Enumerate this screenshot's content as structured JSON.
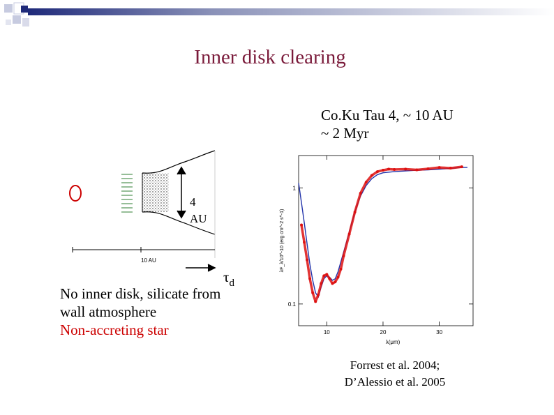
{
  "slide": {
    "title": "Inner disk clearing",
    "object_label_line1": "Co.Ku Tau 4, ~ 10 AU",
    "object_label_line2": "~ 2 Myr",
    "wall_height_line1": "4",
    "wall_height_line2": "AU",
    "scale_label": "10 AU",
    "tau_symbol": "τ",
    "tau_subscript": "d",
    "description_line1": "No inner disk, silicate from",
    "description_line2": "wall atmosphere",
    "description_line3": "Non-accreting star",
    "citation_line1": "Forrest et al. 2004;",
    "citation_line2": "D’Alessio et al. 2005"
  },
  "colors": {
    "title": "#7a1a3a",
    "accent_red": "#cc0000",
    "model_blue": "#2233aa",
    "corner_navy": "#1f2a7a"
  },
  "chart_data": {
    "type": "line",
    "xlabel": "λ(μm)",
    "ylabel": "λF_λ/10^-10 (erg cm^-2 s^-1)",
    "xticks": [
      "10",
      "20",
      "30"
    ],
    "yticks": [
      "1",
      "0.1"
    ],
    "xlim": [
      5,
      36
    ],
    "yscale": "log",
    "series": [
      {
        "style": "model",
        "color": "#2233aa",
        "x": [
          5.0,
          5.5,
          6.0,
          6.5,
          7.0,
          7.5,
          8.0,
          8.5,
          9.0,
          9.5,
          10.0,
          10.5,
          11.0,
          11.5,
          12.0,
          13.0,
          14.0,
          15.0,
          16.0,
          17.0,
          18.0,
          19.0,
          20.0,
          22.0,
          24.0,
          26.0,
          28.0,
          30.0,
          32.0,
          34.0,
          35.0
        ],
        "y": [
          1.1,
          0.75,
          0.5,
          0.33,
          0.22,
          0.16,
          0.125,
          0.115,
          0.14,
          0.165,
          0.175,
          0.17,
          0.16,
          0.165,
          0.19,
          0.28,
          0.42,
          0.62,
          0.85,
          1.05,
          1.2,
          1.3,
          1.35,
          1.38,
          1.4,
          1.42,
          1.43,
          1.45,
          1.47,
          1.5,
          1.5
        ]
      },
      {
        "style": "observed",
        "color": "#dd1111",
        "x": [
          5.5,
          6.0,
          6.5,
          7.0,
          7.5,
          8.0,
          8.5,
          9.0,
          9.5,
          10.0,
          10.5,
          11.0,
          11.5,
          12.0,
          12.5,
          13.0,
          14.0,
          15.0,
          16.0,
          17.0,
          18.0,
          19.0,
          20.0,
          21.0,
          22.0,
          24.0,
          26.0,
          28.0,
          30.0,
          32.0,
          34.0
        ],
        "y": [
          0.48,
          0.34,
          0.24,
          0.165,
          0.125,
          0.105,
          0.12,
          0.15,
          0.175,
          0.18,
          0.165,
          0.15,
          0.155,
          0.17,
          0.2,
          0.26,
          0.4,
          0.62,
          0.9,
          1.12,
          1.28,
          1.38,
          1.42,
          1.45,
          1.44,
          1.45,
          1.43,
          1.46,
          1.5,
          1.48,
          1.52
        ]
      }
    ]
  }
}
